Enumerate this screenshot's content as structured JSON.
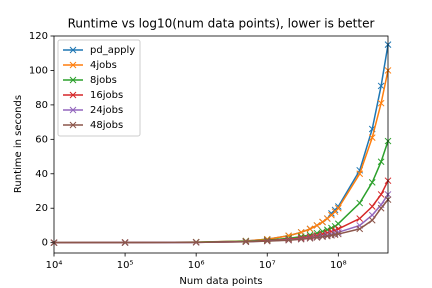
{
  "chart_data": {
    "type": "line",
    "title": "Runtime vs log10(num data points), lower is better",
    "x_label": "Num data points",
    "y_label": "Runtime in seconds",
    "x": [
      10000,
      100000,
      1000000,
      5000000,
      10000000,
      20000000,
      30000000,
      40000000,
      50000000,
      60000000,
      70000000,
      80000000,
      90000000,
      100000000,
      200000000,
      300000000,
      400000000,
      500000000
    ],
    "series": [
      {
        "name": "pd_apply",
        "color": "#1f77b4",
        "values": [
          0,
          0,
          0.2,
          1,
          2,
          4,
          6,
          8,
          10,
          12,
          14,
          17,
          19,
          21,
          42,
          66,
          91,
          115
        ]
      },
      {
        "name": "4jobs",
        "color": "#ff7f0e",
        "values": [
          0,
          0.1,
          0.3,
          1,
          2,
          4,
          6,
          8,
          10,
          12,
          14,
          16,
          18,
          20,
          40,
          61,
          81,
          100
        ]
      },
      {
        "name": "8jobs",
        "color": "#2ca02c",
        "values": [
          0,
          0.1,
          0.3,
          0.8,
          1.5,
          2.5,
          3.5,
          4.5,
          5.5,
          6.5,
          7.5,
          8.5,
          9.5,
          11,
          23,
          35,
          47,
          59
        ]
      },
      {
        "name": "16jobs",
        "color": "#d62728",
        "values": [
          0,
          0.1,
          0.2,
          0.6,
          1.2,
          2,
          2.8,
          3.5,
          4.2,
          5,
          5.8,
          6.5,
          7.2,
          8,
          14,
          21,
          28,
          36
        ]
      },
      {
        "name": "24jobs",
        "color": "#9467bd",
        "values": [
          0,
          0.1,
          0.2,
          0.5,
          1,
          1.6,
          2.2,
          2.8,
          3.3,
          3.8,
          4.3,
          4.8,
          5.3,
          6,
          10,
          16,
          22,
          28
        ]
      },
      {
        "name": "48jobs",
        "color": "#8c564b",
        "values": [
          0,
          0.1,
          0.2,
          0.5,
          0.9,
          1.4,
          2,
          2.5,
          3,
          3.4,
          3.8,
          4.2,
          4.6,
          5,
          8,
          13,
          20,
          25
        ]
      }
    ],
    "xscale": "log",
    "xlim": [
      10000,
      500000000
    ],
    "xticks": [
      {
        "value": 10000,
        "label": "10⁴"
      },
      {
        "value": 100000,
        "label": "10⁵"
      },
      {
        "value": 1000000,
        "label": "10⁶"
      },
      {
        "value": 10000000,
        "label": "10⁷"
      },
      {
        "value": 100000000,
        "label": "10⁸"
      }
    ],
    "ylim": [
      -6,
      120
    ],
    "yticks": [
      0,
      20,
      40,
      60,
      80,
      100,
      120
    ],
    "legend": "upper left",
    "grid": false,
    "marker": "x"
  }
}
